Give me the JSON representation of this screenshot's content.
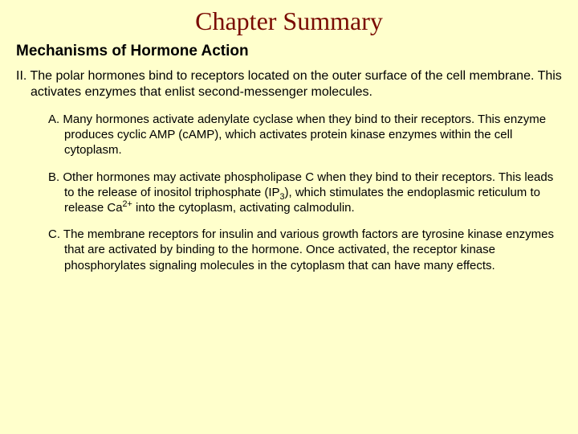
{
  "title": "Chapter Summary",
  "heading": "Mechanisms of Hormone Action",
  "mainPoint": {
    "num": "II.",
    "text": "The polar hormones bind to receptors located on the outer surface of the cell membrane. This activates enzymes that enlist second-messenger molecules."
  },
  "subA": {
    "num": "A.",
    "text": "Many hormones activate adenylate cyclase when they bind to their receptors. This enzyme produces cyclic AMP (cAMP), which activates protein kinase enzymes within the cell cytoplasm."
  },
  "subB": {
    "num": "B.",
    "before": "Other hormones may activate phospholipase C when they bind to their receptors. This leads to the release of inositol triphosphate (IP",
    "sub1": "3",
    "mid": "), which stimulates the endoplasmic reticulum to release Ca",
    "sup": "2+",
    "after": " into the cytoplasm, activating calmodulin."
  },
  "subC": {
    "num": "C.",
    "text": "The membrane receptors for insulin and various growth factors are tyrosine kinase enzymes that are activated by binding to the hormone. Once activated, the receptor kinase phosphorylates signaling molecules in the cytoplasm that can have many effects."
  },
  "colors": {
    "background": "#ffffcc",
    "title": "#7a0b02",
    "body": "#000000"
  }
}
